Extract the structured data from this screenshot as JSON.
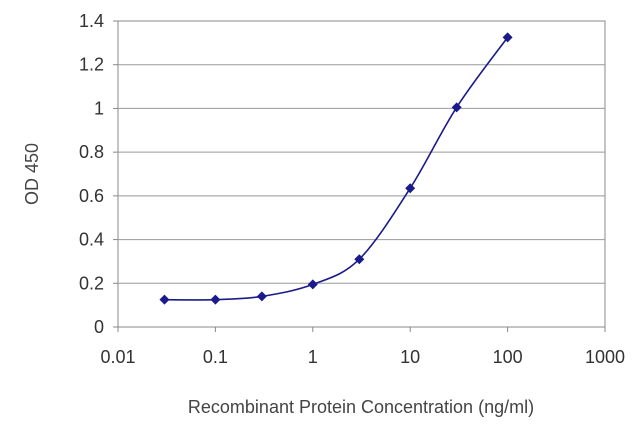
{
  "chart_data": {
    "type": "line",
    "title": "",
    "xlabel": "Recombinant Protein Concentration (ng/ml)",
    "ylabel": "OD 450",
    "x_scale": "log",
    "xlim": [
      0.01,
      1000
    ],
    "ylim": [
      0,
      1.4
    ],
    "x_ticks": [
      0.01,
      0.1,
      1,
      10,
      100,
      1000
    ],
    "x_tick_labels": [
      "0.01",
      "0.1",
      "1",
      "10",
      "100",
      "1000"
    ],
    "y_ticks": [
      0,
      0.2,
      0.4,
      0.6,
      0.8,
      1,
      1.2,
      1.4
    ],
    "y_tick_labels": [
      "0",
      "0.2",
      "0.4",
      "0.6",
      "0.8",
      "1",
      "1.2",
      "1.4"
    ],
    "grid": "horizontal",
    "legend": "none",
    "series": [
      {
        "x": [
          0.03,
          0.1,
          0.3,
          1,
          3,
          10,
          30,
          100
        ],
        "y": [
          0.125,
          0.125,
          0.14,
          0.195,
          0.31,
          0.635,
          1.005,
          1.325
        ],
        "color": "#1a1a8c"
      }
    ]
  }
}
